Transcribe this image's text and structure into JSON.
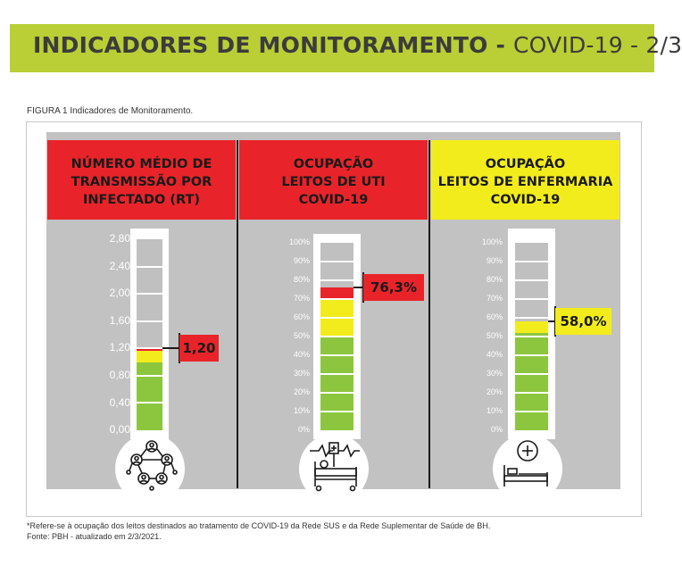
{
  "header": {
    "title_bold": "INDICADORES DE MONITORAMENTO - ",
    "title_normal": "COVID-19 - 2/3"
  },
  "figure_caption": "FIGURA 1 Indicadores de Monitoramento.",
  "colors": {
    "banner": "#b9cf35",
    "red": "#e8242a",
    "yellow": "#f2ec1c",
    "green": "#8cc63f",
    "panel_gray": "#c2c2c2"
  },
  "indicators": [
    {
      "title": "NÚMERO MÉDIO DE\nTRANSMISSÃO POR\nINFECTADO (RT)",
      "header_color": "red",
      "value_label": "1,20",
      "value_color": "red",
      "scale_labels": [
        "2,80",
        "2,40",
        "2,00",
        "1,60",
        "1,20",
        "0,80",
        "0,40",
        "0,00"
      ],
      "scale_max": 2.8,
      "value": 1.2,
      "fill": [
        {
          "color": "green",
          "from": 0,
          "to": 1.0
        },
        {
          "color": "yellow",
          "from": 1.0,
          "to": 1.16
        },
        {
          "color": "red",
          "from": 1.16,
          "to": 1.2
        }
      ],
      "icon": "network-people-icon"
    },
    {
      "title": "OCUPAÇÃO\nLEITOS DE UTI\nCOVID-19",
      "header_color": "red",
      "value_label": "76,3%",
      "value_color": "red",
      "scale_labels": [
        "100%",
        "90%",
        "80%",
        "70%",
        "60%",
        "50%",
        "40%",
        "30%",
        "20%",
        "10%",
        "0%"
      ],
      "scale_max": 100,
      "value": 76.3,
      "fill": [
        {
          "color": "green",
          "from": 0,
          "to": 50
        },
        {
          "color": "yellow",
          "from": 50,
          "to": 70
        },
        {
          "color": "red",
          "from": 70,
          "to": 76.3
        }
      ],
      "icon": "icu-bed-icon"
    },
    {
      "title": "OCUPAÇÃO\nLEITOS DE ENFERMARIA\nCOVID-19",
      "header_color": "yellow",
      "value_label": "58,0%",
      "value_color": "yellow",
      "scale_labels": [
        "100%",
        "90%",
        "80%",
        "70%",
        "60%",
        "50%",
        "40%",
        "30%",
        "20%",
        "10%",
        "0%"
      ],
      "scale_max": 100,
      "value": 58.0,
      "fill": [
        {
          "color": "green",
          "from": 0,
          "to": 52
        },
        {
          "color": "yellow",
          "from": 52,
          "to": 58
        }
      ],
      "icon": "hospital-bed-icon"
    }
  ],
  "footnote": {
    "line1": "*Refere-se à ocupação dos leitos destinados ao tratamento de COVID-19 da Rede SUS e da Rede Suplementar de Saúde de BH.",
    "line2": "Fonte: PBH - atualizado em 2/3/2021."
  }
}
